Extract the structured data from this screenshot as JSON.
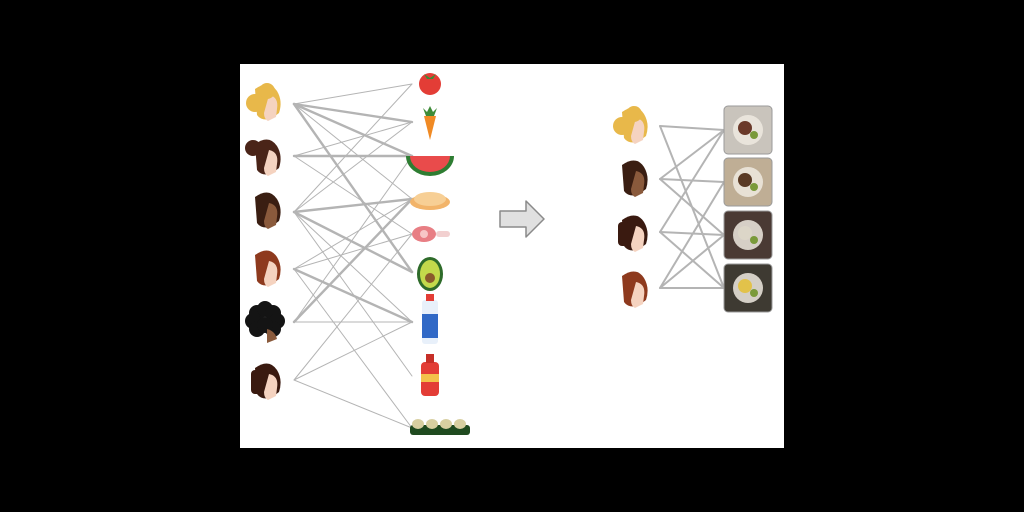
{
  "diagram": {
    "left_panel": {
      "people": [
        {
          "name": "person-blonde-hair",
          "hair": "#E8B84A",
          "skin": "#F5D3C0"
        },
        {
          "name": "person-bun-hair",
          "hair": "#4A2418",
          "skin": "#F5D3C0"
        },
        {
          "name": "person-dark-skin",
          "hair": "#3A1E12",
          "skin": "#8A5A3C"
        },
        {
          "name": "person-red-hair",
          "hair": "#8E3A1E",
          "skin": "#F5D3C0"
        },
        {
          "name": "person-curly-hair",
          "hair": "#141414",
          "skin": "#8A5A3C"
        },
        {
          "name": "person-bob-hair",
          "hair": "#3A1A10",
          "skin": "#F5D3C0"
        }
      ],
      "ingredients": [
        {
          "name": "tomato-icon"
        },
        {
          "name": "carrot-icon"
        },
        {
          "name": "watermelon-icon"
        },
        {
          "name": "bread-icon"
        },
        {
          "name": "meat-icon"
        },
        {
          "name": "avocado-icon"
        },
        {
          "name": "milk-bottle-icon"
        },
        {
          "name": "ketchup-bottle-icon"
        },
        {
          "name": "egg-carton-icon"
        }
      ],
      "edges": [
        {
          "from": 0,
          "to": 0,
          "weight": "thin"
        },
        {
          "from": 0,
          "to": 1,
          "weight": "thick"
        },
        {
          "from": 0,
          "to": 2,
          "weight": "thick"
        },
        {
          "from": 0,
          "to": 3,
          "weight": "thin"
        },
        {
          "from": 0,
          "to": 5,
          "weight": "thick"
        },
        {
          "from": 1,
          "to": 2,
          "weight": "thick"
        },
        {
          "from": 1,
          "to": 1,
          "weight": "thin"
        },
        {
          "from": 1,
          "to": 4,
          "weight": "thin"
        },
        {
          "from": 2,
          "to": 0,
          "weight": "thin"
        },
        {
          "from": 2,
          "to": 3,
          "weight": "thick"
        },
        {
          "from": 2,
          "to": 5,
          "weight": "thick"
        },
        {
          "from": 2,
          "to": 6,
          "weight": "thin"
        },
        {
          "from": 2,
          "to": 7,
          "weight": "thin"
        },
        {
          "from": 2,
          "to": 1,
          "weight": "thin"
        },
        {
          "from": 3,
          "to": 3,
          "weight": "thin"
        },
        {
          "from": 3,
          "to": 4,
          "weight": "thin"
        },
        {
          "from": 3,
          "to": 6,
          "weight": "thick"
        },
        {
          "from": 3,
          "to": 8,
          "weight": "thin"
        },
        {
          "from": 4,
          "to": 3,
          "weight": "thick"
        },
        {
          "from": 4,
          "to": 6,
          "weight": "thin"
        },
        {
          "from": 4,
          "to": 2,
          "weight": "thin"
        },
        {
          "from": 5,
          "to": 4,
          "weight": "thin"
        },
        {
          "from": 5,
          "to": 6,
          "weight": "thin"
        },
        {
          "from": 5,
          "to": 8,
          "weight": "thin"
        }
      ]
    },
    "arrow": {
      "name": "right-arrow-icon",
      "fill": "#E0E0E0",
      "stroke": "#8A8A8A"
    },
    "right_panel": {
      "people": [
        {
          "name": "person-blonde-hair",
          "hair": "#E8B84A",
          "skin": "#F5D3C0"
        },
        {
          "name": "person-dark-skin",
          "hair": "#3A1E12",
          "skin": "#8A5A3C"
        },
        {
          "name": "person-bob-hair",
          "hair": "#3A1A10",
          "skin": "#F5D3C0"
        },
        {
          "name": "person-red-hair",
          "hair": "#8E3A1E",
          "skin": "#F5D3C0"
        }
      ],
      "dishes": [
        {
          "name": "dish-photo-steak-salad",
          "base": "#C9C4BC",
          "accent": "#6B3A2A"
        },
        {
          "name": "dish-photo-sandwich",
          "base": "#BFAE95",
          "accent": "#5A3A24"
        },
        {
          "name": "dish-photo-soup-bowl",
          "base": "#4A3A34",
          "accent": "#DCD6C8"
        },
        {
          "name": "dish-photo-stir-fry",
          "base": "#3E3A32",
          "accent": "#E2C24A"
        }
      ],
      "edges": [
        {
          "from": 0,
          "to": 0
        },
        {
          "from": 0,
          "to": 3
        },
        {
          "from": 1,
          "to": 0
        },
        {
          "from": 1,
          "to": 1
        },
        {
          "from": 1,
          "to": 2
        },
        {
          "from": 2,
          "to": 0
        },
        {
          "from": 2,
          "to": 2
        },
        {
          "from": 2,
          "to": 3
        },
        {
          "from": 3,
          "to": 1
        },
        {
          "from": 3,
          "to": 2
        },
        {
          "from": 3,
          "to": 3
        }
      ]
    },
    "edge_color": "#B4B4B4"
  }
}
